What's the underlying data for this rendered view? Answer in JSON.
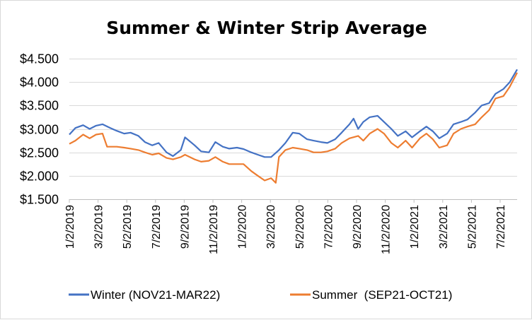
{
  "chart_data": {
    "type": "line",
    "title": "Summer & Winter Strip Average",
    "xlabel": "",
    "ylabel": "",
    "ylim": [
      1.5,
      4.5
    ],
    "y_ticks": [
      1.5,
      2.0,
      2.5,
      3.0,
      3.5,
      4.0,
      4.5
    ],
    "y_tick_labels": [
      "$1.500",
      "$2.000",
      "$2.500",
      "$3.000",
      "$3.500",
      "$4.000",
      "$4.500"
    ],
    "x_tick_labels": [
      "1/2/2019",
      "3/2/2019",
      "5/2/2019",
      "7/2/2019",
      "9/2/2019",
      "11/2/2019",
      "1/2/2020",
      "3/2/2020",
      "5/2/2020",
      "7/2/2020",
      "9/2/2020",
      "11/2/2020",
      "1/2/2021",
      "3/2/2021",
      "5/2/2021",
      "7/2/2021"
    ],
    "x_range": [
      "2019-01-02",
      "2021-08-31"
    ],
    "grid": "horizontal",
    "legend_position": "bottom",
    "series": [
      {
        "name": "Winter (NOV21-MAR22)",
        "color": "#4472c4",
        "points": [
          [
            "2019-01-02",
            2.88
          ],
          [
            "2019-01-15",
            3.02
          ],
          [
            "2019-02-01",
            3.08
          ],
          [
            "2019-02-15",
            3.0
          ],
          [
            "2019-03-01",
            3.07
          ],
          [
            "2019-03-15",
            3.1
          ],
          [
            "2019-04-01",
            3.02
          ],
          [
            "2019-04-15",
            2.96
          ],
          [
            "2019-05-01",
            2.9
          ],
          [
            "2019-05-15",
            2.92
          ],
          [
            "2019-06-01",
            2.85
          ],
          [
            "2019-06-15",
            2.72
          ],
          [
            "2019-07-01",
            2.65
          ],
          [
            "2019-07-15",
            2.7
          ],
          [
            "2019-08-01",
            2.5
          ],
          [
            "2019-08-15",
            2.42
          ],
          [
            "2019-09-01",
            2.55
          ],
          [
            "2019-09-10",
            2.82
          ],
          [
            "2019-10-01",
            2.65
          ],
          [
            "2019-10-15",
            2.52
          ],
          [
            "2019-11-01",
            2.5
          ],
          [
            "2019-11-15",
            2.72
          ],
          [
            "2019-12-01",
            2.62
          ],
          [
            "2019-12-15",
            2.58
          ],
          [
            "2020-01-01",
            2.6
          ],
          [
            "2020-01-15",
            2.57
          ],
          [
            "2020-02-01",
            2.5
          ],
          [
            "2020-02-15",
            2.45
          ],
          [
            "2020-03-01",
            2.4
          ],
          [
            "2020-03-15",
            2.4
          ],
          [
            "2020-04-01",
            2.55
          ],
          [
            "2020-04-15",
            2.7
          ],
          [
            "2020-05-01",
            2.92
          ],
          [
            "2020-05-15",
            2.9
          ],
          [
            "2020-06-01",
            2.78
          ],
          [
            "2020-06-15",
            2.75
          ],
          [
            "2020-07-01",
            2.72
          ],
          [
            "2020-07-15",
            2.7
          ],
          [
            "2020-08-01",
            2.78
          ],
          [
            "2020-08-15",
            2.92
          ],
          [
            "2020-09-01",
            3.1
          ],
          [
            "2020-09-10",
            3.22
          ],
          [
            "2020-09-20",
            3.0
          ],
          [
            "2020-10-01",
            3.15
          ],
          [
            "2020-10-15",
            3.25
          ],
          [
            "2020-11-01",
            3.28
          ],
          [
            "2020-11-15",
            3.15
          ],
          [
            "2020-12-01",
            3.0
          ],
          [
            "2020-12-15",
            2.85
          ],
          [
            "2021-01-01",
            2.95
          ],
          [
            "2021-01-15",
            2.82
          ],
          [
            "2021-02-01",
            2.95
          ],
          [
            "2021-02-15",
            3.05
          ],
          [
            "2021-03-01",
            2.95
          ],
          [
            "2021-03-15",
            2.8
          ],
          [
            "2021-04-01",
            2.9
          ],
          [
            "2021-04-15",
            3.1
          ],
          [
            "2021-05-01",
            3.15
          ],
          [
            "2021-05-15",
            3.2
          ],
          [
            "2021-06-01",
            3.35
          ],
          [
            "2021-06-15",
            3.5
          ],
          [
            "2021-07-01",
            3.55
          ],
          [
            "2021-07-15",
            3.75
          ],
          [
            "2021-08-01",
            3.85
          ],
          [
            "2021-08-15",
            4.0
          ],
          [
            "2021-08-31",
            4.27
          ]
        ]
      },
      {
        "name": "Summer  (SEP21-OCT21)",
        "color": "#ed7d31",
        "points": [
          [
            "2019-01-02",
            2.68
          ],
          [
            "2019-01-15",
            2.75
          ],
          [
            "2019-02-01",
            2.88
          ],
          [
            "2019-02-15",
            2.8
          ],
          [
            "2019-03-01",
            2.88
          ],
          [
            "2019-03-15",
            2.9
          ],
          [
            "2019-03-25",
            2.62
          ],
          [
            "2019-04-15",
            2.62
          ],
          [
            "2019-05-01",
            2.6
          ],
          [
            "2019-05-15",
            2.58
          ],
          [
            "2019-06-01",
            2.55
          ],
          [
            "2019-06-15",
            2.5
          ],
          [
            "2019-07-01",
            2.45
          ],
          [
            "2019-07-15",
            2.48
          ],
          [
            "2019-08-01",
            2.38
          ],
          [
            "2019-08-15",
            2.35
          ],
          [
            "2019-09-01",
            2.4
          ],
          [
            "2019-09-10",
            2.45
          ],
          [
            "2019-10-01",
            2.35
          ],
          [
            "2019-10-15",
            2.3
          ],
          [
            "2019-11-01",
            2.32
          ],
          [
            "2019-11-15",
            2.4
          ],
          [
            "2019-12-01",
            2.3
          ],
          [
            "2019-12-15",
            2.25
          ],
          [
            "2020-01-01",
            2.25
          ],
          [
            "2020-01-15",
            2.25
          ],
          [
            "2020-02-01",
            2.1
          ],
          [
            "2020-02-15",
            2.0
          ],
          [
            "2020-03-01",
            1.9
          ],
          [
            "2020-03-15",
            1.95
          ],
          [
            "2020-03-25",
            1.85
          ],
          [
            "2020-04-01",
            2.4
          ],
          [
            "2020-04-15",
            2.55
          ],
          [
            "2020-05-01",
            2.6
          ],
          [
            "2020-05-15",
            2.58
          ],
          [
            "2020-06-01",
            2.55
          ],
          [
            "2020-06-15",
            2.5
          ],
          [
            "2020-07-01",
            2.5
          ],
          [
            "2020-07-15",
            2.52
          ],
          [
            "2020-08-01",
            2.58
          ],
          [
            "2020-08-15",
            2.7
          ],
          [
            "2020-09-01",
            2.8
          ],
          [
            "2020-09-20",
            2.85
          ],
          [
            "2020-10-01",
            2.75
          ],
          [
            "2020-10-15",
            2.9
          ],
          [
            "2020-11-01",
            3.0
          ],
          [
            "2020-11-15",
            2.9
          ],
          [
            "2020-12-01",
            2.7
          ],
          [
            "2020-12-15",
            2.6
          ],
          [
            "2021-01-01",
            2.75
          ],
          [
            "2021-01-15",
            2.6
          ],
          [
            "2021-02-01",
            2.8
          ],
          [
            "2021-02-15",
            2.9
          ],
          [
            "2021-03-01",
            2.78
          ],
          [
            "2021-03-15",
            2.6
          ],
          [
            "2021-04-01",
            2.65
          ],
          [
            "2021-04-15",
            2.9
          ],
          [
            "2021-05-01",
            3.0
          ],
          [
            "2021-05-15",
            3.05
          ],
          [
            "2021-06-01",
            3.1
          ],
          [
            "2021-06-15",
            3.25
          ],
          [
            "2021-07-01",
            3.4
          ],
          [
            "2021-07-15",
            3.65
          ],
          [
            "2021-08-01",
            3.7
          ],
          [
            "2021-08-15",
            3.9
          ],
          [
            "2021-08-31",
            4.2
          ]
        ]
      }
    ]
  }
}
